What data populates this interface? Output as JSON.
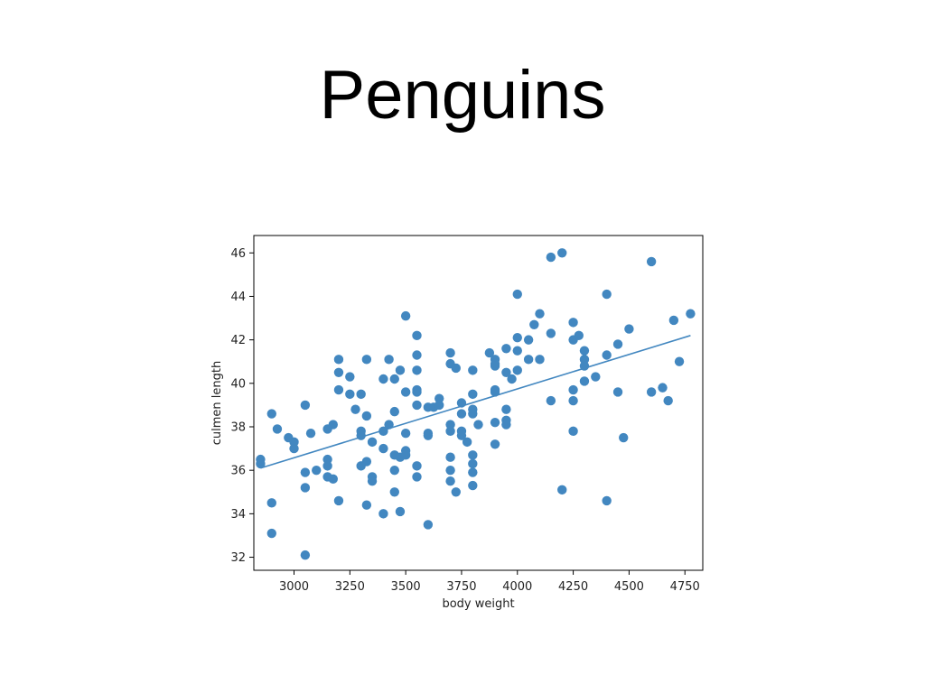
{
  "slide": {
    "title": "Penguins"
  },
  "chart_data": {
    "type": "scatter",
    "title": "",
    "xlabel": "body weight",
    "ylabel": "culmen length",
    "xlim": [
      2820,
      4830
    ],
    "ylim": [
      31.4,
      46.8
    ],
    "xticks": [
      3000,
      3250,
      3500,
      3750,
      4000,
      4250,
      4500,
      4750
    ],
    "yticks": [
      32,
      34,
      36,
      38,
      40,
      42,
      44,
      46
    ],
    "grid": false,
    "legend": "none",
    "point_color": "#4287c0",
    "line_color": "#4287c0",
    "trend_line": {
      "x": [
        2850,
        4775
      ],
      "y": [
        36.1,
        42.2
      ]
    },
    "points": [
      {
        "x": 2850,
        "y": 36.5
      },
      {
        "x": 2850,
        "y": 36.3
      },
      {
        "x": 2900,
        "y": 38.6
      },
      {
        "x": 2900,
        "y": 34.5
      },
      {
        "x": 2900,
        "y": 33.1
      },
      {
        "x": 2925,
        "y": 37.9
      },
      {
        "x": 2975,
        "y": 37.5
      },
      {
        "x": 3000,
        "y": 37.0
      },
      {
        "x": 3000,
        "y": 37.3
      },
      {
        "x": 3050,
        "y": 39.0
      },
      {
        "x": 3050,
        "y": 35.9
      },
      {
        "x": 3050,
        "y": 35.2
      },
      {
        "x": 3050,
        "y": 32.1
      },
      {
        "x": 3075,
        "y": 37.7
      },
      {
        "x": 3100,
        "y": 36.0
      },
      {
        "x": 3150,
        "y": 37.9
      },
      {
        "x": 3150,
        "y": 36.5
      },
      {
        "x": 3150,
        "y": 36.2
      },
      {
        "x": 3150,
        "y": 35.7
      },
      {
        "x": 3175,
        "y": 38.1
      },
      {
        "x": 3175,
        "y": 35.6
      },
      {
        "x": 3200,
        "y": 41.1
      },
      {
        "x": 3200,
        "y": 40.5
      },
      {
        "x": 3200,
        "y": 39.7
      },
      {
        "x": 3200,
        "y": 34.6
      },
      {
        "x": 3250,
        "y": 40.3
      },
      {
        "x": 3250,
        "y": 39.5
      },
      {
        "x": 3275,
        "y": 38.8
      },
      {
        "x": 3300,
        "y": 39.5
      },
      {
        "x": 3300,
        "y": 37.8
      },
      {
        "x": 3300,
        "y": 37.6
      },
      {
        "x": 3300,
        "y": 36.2
      },
      {
        "x": 3325,
        "y": 41.1
      },
      {
        "x": 3325,
        "y": 38.5
      },
      {
        "x": 3325,
        "y": 36.4
      },
      {
        "x": 3325,
        "y": 34.4
      },
      {
        "x": 3350,
        "y": 37.3
      },
      {
        "x": 3350,
        "y": 35.7
      },
      {
        "x": 3350,
        "y": 35.5
      },
      {
        "x": 3400,
        "y": 40.2
      },
      {
        "x": 3400,
        "y": 37.8
      },
      {
        "x": 3400,
        "y": 37.0
      },
      {
        "x": 3400,
        "y": 34.0
      },
      {
        "x": 3425,
        "y": 41.1
      },
      {
        "x": 3425,
        "y": 38.1
      },
      {
        "x": 3450,
        "y": 40.2
      },
      {
        "x": 3450,
        "y": 38.7
      },
      {
        "x": 3450,
        "y": 36.7
      },
      {
        "x": 3450,
        "y": 36.0
      },
      {
        "x": 3450,
        "y": 35.0
      },
      {
        "x": 3475,
        "y": 40.6
      },
      {
        "x": 3475,
        "y": 36.6
      },
      {
        "x": 3475,
        "y": 34.1
      },
      {
        "x": 3500,
        "y": 43.1
      },
      {
        "x": 3500,
        "y": 39.6
      },
      {
        "x": 3500,
        "y": 37.7
      },
      {
        "x": 3500,
        "y": 36.9
      },
      {
        "x": 3500,
        "y": 36.7
      },
      {
        "x": 3550,
        "y": 42.2
      },
      {
        "x": 3550,
        "y": 41.3
      },
      {
        "x": 3550,
        "y": 40.6
      },
      {
        "x": 3550,
        "y": 39.7
      },
      {
        "x": 3550,
        "y": 39.6
      },
      {
        "x": 3550,
        "y": 39.0
      },
      {
        "x": 3550,
        "y": 36.2
      },
      {
        "x": 3550,
        "y": 35.7
      },
      {
        "x": 3600,
        "y": 38.9
      },
      {
        "x": 3600,
        "y": 37.7
      },
      {
        "x": 3600,
        "y": 37.6
      },
      {
        "x": 3600,
        "y": 33.5
      },
      {
        "x": 3625,
        "y": 38.9
      },
      {
        "x": 3650,
        "y": 39.3
      },
      {
        "x": 3650,
        "y": 39.0
      },
      {
        "x": 3700,
        "y": 41.4
      },
      {
        "x": 3700,
        "y": 40.9
      },
      {
        "x": 3700,
        "y": 38.1
      },
      {
        "x": 3700,
        "y": 37.8
      },
      {
        "x": 3700,
        "y": 36.6
      },
      {
        "x": 3700,
        "y": 36.0
      },
      {
        "x": 3700,
        "y": 35.5
      },
      {
        "x": 3725,
        "y": 40.7
      },
      {
        "x": 3725,
        "y": 35.0
      },
      {
        "x": 3750,
        "y": 39.1
      },
      {
        "x": 3750,
        "y": 38.6
      },
      {
        "x": 3750,
        "y": 37.8
      },
      {
        "x": 3750,
        "y": 37.6
      },
      {
        "x": 3775,
        "y": 37.3
      },
      {
        "x": 3800,
        "y": 40.6
      },
      {
        "x": 3800,
        "y": 39.5
      },
      {
        "x": 3800,
        "y": 38.8
      },
      {
        "x": 3800,
        "y": 38.6
      },
      {
        "x": 3800,
        "y": 36.7
      },
      {
        "x": 3800,
        "y": 36.3
      },
      {
        "x": 3800,
        "y": 35.9
      },
      {
        "x": 3800,
        "y": 35.3
      },
      {
        "x": 3825,
        "y": 38.1
      },
      {
        "x": 3875,
        "y": 41.4
      },
      {
        "x": 3900,
        "y": 41.1
      },
      {
        "x": 3900,
        "y": 40.9
      },
      {
        "x": 3900,
        "y": 40.8
      },
      {
        "x": 3900,
        "y": 39.7
      },
      {
        "x": 3900,
        "y": 39.6
      },
      {
        "x": 3900,
        "y": 38.2
      },
      {
        "x": 3900,
        "y": 37.2
      },
      {
        "x": 3950,
        "y": 41.6
      },
      {
        "x": 3950,
        "y": 40.5
      },
      {
        "x": 3950,
        "y": 38.8
      },
      {
        "x": 3950,
        "y": 38.3
      },
      {
        "x": 3950,
        "y": 38.1
      },
      {
        "x": 3975,
        "y": 40.2
      },
      {
        "x": 4000,
        "y": 44.1
      },
      {
        "x": 4000,
        "y": 42.1
      },
      {
        "x": 4000,
        "y": 41.5
      },
      {
        "x": 4000,
        "y": 40.6
      },
      {
        "x": 4050,
        "y": 42.0
      },
      {
        "x": 4050,
        "y": 41.1
      },
      {
        "x": 4075,
        "y": 42.7
      },
      {
        "x": 4100,
        "y": 43.2
      },
      {
        "x": 4100,
        "y": 41.1
      },
      {
        "x": 4150,
        "y": 45.8
      },
      {
        "x": 4150,
        "y": 42.3
      },
      {
        "x": 4150,
        "y": 39.2
      },
      {
        "x": 4200,
        "y": 46.0
      },
      {
        "x": 4200,
        "y": 35.1
      },
      {
        "x": 4250,
        "y": 42.8
      },
      {
        "x": 4250,
        "y": 42.0
      },
      {
        "x": 4250,
        "y": 39.7
      },
      {
        "x": 4250,
        "y": 39.2
      },
      {
        "x": 4250,
        "y": 37.8
      },
      {
        "x": 4275,
        "y": 42.2
      },
      {
        "x": 4300,
        "y": 41.5
      },
      {
        "x": 4300,
        "y": 41.1
      },
      {
        "x": 4300,
        "y": 40.8
      },
      {
        "x": 4300,
        "y": 40.1
      },
      {
        "x": 4350,
        "y": 40.3
      },
      {
        "x": 4400,
        "y": 44.1
      },
      {
        "x": 4400,
        "y": 41.3
      },
      {
        "x": 4400,
        "y": 34.6
      },
      {
        "x": 4450,
        "y": 41.8
      },
      {
        "x": 4450,
        "y": 39.6
      },
      {
        "x": 4475,
        "y": 37.5
      },
      {
        "x": 4500,
        "y": 42.5
      },
      {
        "x": 4600,
        "y": 45.6
      },
      {
        "x": 4600,
        "y": 39.6
      },
      {
        "x": 4650,
        "y": 39.8
      },
      {
        "x": 4675,
        "y": 39.2
      },
      {
        "x": 4700,
        "y": 42.9
      },
      {
        "x": 4725,
        "y": 41.0
      },
      {
        "x": 4775,
        "y": 43.2
      }
    ]
  }
}
